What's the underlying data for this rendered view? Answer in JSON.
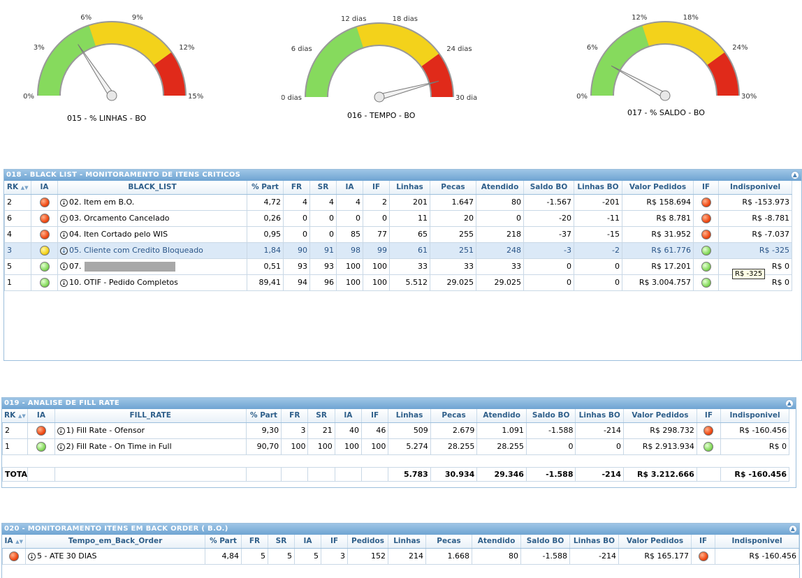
{
  "gauges": [
    {
      "title": "015 - % LINHAS - BO",
      "ticks": [
        "0%",
        "3%",
        "6%",
        "9%",
        "12%",
        "15%"
      ]
    },
    {
      "title": "016 - TEMPO - BO",
      "ticks": [
        "0 dias",
        "6 dias",
        "12 dias",
        "18 dias",
        "24 dias",
        "30 dias"
      ]
    },
    {
      "title": "017 - % SALDO - BO",
      "ticks": [
        "0%",
        "6%",
        "12%",
        "18%",
        "24%",
        "30%"
      ]
    }
  ],
  "gauge_values": [
    {
      "value": 4.72,
      "max": 15
    },
    {
      "value": 27.5,
      "max": 30
    },
    {
      "value": 4.84,
      "max": 30
    }
  ],
  "colors": {
    "green": "#86da5d",
    "yellow": "#f3d21b",
    "red": "#e02a1a",
    "header": "#6ea4d2"
  },
  "blacklist": {
    "title": "018 - BLACK LIST - MONITORAMENTO DE ITENS CRITICOS",
    "columns": [
      "RK",
      "IA",
      "BLACK_LIST",
      "% Part",
      "FR",
      "SR",
      "IA",
      "IF",
      "Linhas",
      "Pecas",
      "Atendido",
      "Saldo BO",
      "Linhas BO",
      "Valor Pedidos",
      "IF",
      "Indisponivel"
    ],
    "rows": [
      {
        "rk": "2",
        "ia": "red",
        "name": "02. Item em B.O.",
        "part": "4,72",
        "fr": "4",
        "sr": "4",
        "ia2": "4",
        "if": "2",
        "linhas": "201",
        "pecas": "1.647",
        "atendido": "80",
        "saldo": "-1.567",
        "linhasbo": "-201",
        "valor": "R$ 158.694",
        "if2": "red",
        "indisp": "R$ -153.973"
      },
      {
        "rk": "6",
        "ia": "red",
        "name": "03. Orcamento Cancelado",
        "part": "0,26",
        "fr": "0",
        "sr": "0",
        "ia2": "0",
        "if": "0",
        "linhas": "11",
        "pecas": "20",
        "atendido": "0",
        "saldo": "-20",
        "linhasbo": "-11",
        "valor": "R$ 8.781",
        "if2": "red",
        "indisp": "R$ -8.781"
      },
      {
        "rk": "4",
        "ia": "red",
        "name": "04. Iten Cortado pelo WIS",
        "part": "0,95",
        "fr": "0",
        "sr": "0",
        "ia2": "85",
        "if": "77",
        "linhas": "65",
        "pecas": "255",
        "atendido": "218",
        "saldo": "-37",
        "linhasbo": "-15",
        "valor": "R$ 31.952",
        "if2": "red",
        "indisp": "R$ -7.037"
      },
      {
        "rk": "3",
        "ia": "yellow",
        "name": "05. Cliente com Credito Bloqueado",
        "part": "1,84",
        "fr": "90",
        "sr": "91",
        "ia2": "98",
        "if": "99",
        "linhas": "61",
        "pecas": "251",
        "atendido": "248",
        "saldo": "-3",
        "linhasbo": "-2",
        "valor": "R$ 61.776",
        "if2": "green",
        "indisp": "R$ -325"
      },
      {
        "rk": "5",
        "ia": "green",
        "name": "07.",
        "part": "0,51",
        "fr": "93",
        "sr": "93",
        "ia2": "100",
        "if": "100",
        "linhas": "33",
        "pecas": "33",
        "atendido": "33",
        "saldo": "0",
        "linhasbo": "0",
        "valor": "R$ 17.201",
        "if2": "green",
        "indisp": "R$ 0"
      },
      {
        "rk": "1",
        "ia": "green",
        "name": "10. OTIF - Pedido Completos",
        "part": "89,41",
        "fr": "94",
        "sr": "96",
        "ia2": "100",
        "if": "100",
        "linhas": "5.512",
        "pecas": "29.025",
        "atendido": "29.025",
        "saldo": "0",
        "linhasbo": "0",
        "valor": "R$ 3.004.757",
        "if2": "green",
        "indisp": "R$ 0"
      }
    ],
    "tooltip": "R$ -325"
  },
  "fillrate": {
    "title": "019 - ANALISE DE FILL RATE",
    "columns": [
      "RK",
      "IA",
      "FILL_RATE",
      "% Part",
      "FR",
      "SR",
      "IA",
      "IF",
      "Linhas",
      "Pecas",
      "Atendido",
      "Saldo BO",
      "Linhas BO",
      "Valor Pedidos",
      "IF",
      "Indisponivel"
    ],
    "rows": [
      {
        "rk": "2",
        "ia": "red",
        "name": "1) Fill Rate - Ofensor",
        "part": "9,30",
        "fr": "3",
        "sr": "21",
        "ia2": "40",
        "if": "46",
        "linhas": "509",
        "pecas": "2.679",
        "atendido": "1.091",
        "saldo": "-1.588",
        "linhasbo": "-214",
        "valor": "R$ 298.732",
        "if2": "red",
        "indisp": "R$ -160.456"
      },
      {
        "rk": "1",
        "ia": "green",
        "name": "2) Fill Rate - On Time in Full",
        "part": "90,70",
        "fr": "100",
        "sr": "100",
        "ia2": "100",
        "if": "100",
        "linhas": "5.274",
        "pecas": "28.255",
        "atendido": "28.255",
        "saldo": "0",
        "linhasbo": "0",
        "valor": "R$ 2.913.934",
        "if2": "green",
        "indisp": "R$ 0"
      }
    ],
    "total": {
      "label": "TOTAL",
      "linhas": "5.783",
      "pecas": "30.934",
      "atendido": "29.346",
      "saldo": "-1.588",
      "linhasbo": "-214",
      "valor": "R$ 3.212.666",
      "indisp": "R$ -160.456"
    }
  },
  "backorder": {
    "title": "020 - MONITORAMENTO ITENS EM BACK ORDER ( B.O.)",
    "columns": [
      "IA",
      "Tempo_em_Back_Order",
      "% Part",
      "FR",
      "SR",
      "IA",
      "IF",
      "Pedidos",
      "Linhas",
      "Pecas",
      "Atendido",
      "Saldo BO",
      "Linhas BO",
      "Valor Pedidos",
      "IF",
      "Indisponivel"
    ],
    "rows": [
      {
        "ia": "red",
        "name": "5 - ATE 30 DIAS",
        "part": "4,84",
        "fr": "5",
        "sr": "5",
        "ia2": "5",
        "if": "3",
        "pedidos": "152",
        "linhas": "214",
        "pecas": "1.668",
        "atendido": "80",
        "saldo": "-1.588",
        "linhasbo": "-214",
        "valor": "R$ 165.177",
        "if2": "red",
        "indisp": "R$ -160.456"
      }
    ]
  }
}
